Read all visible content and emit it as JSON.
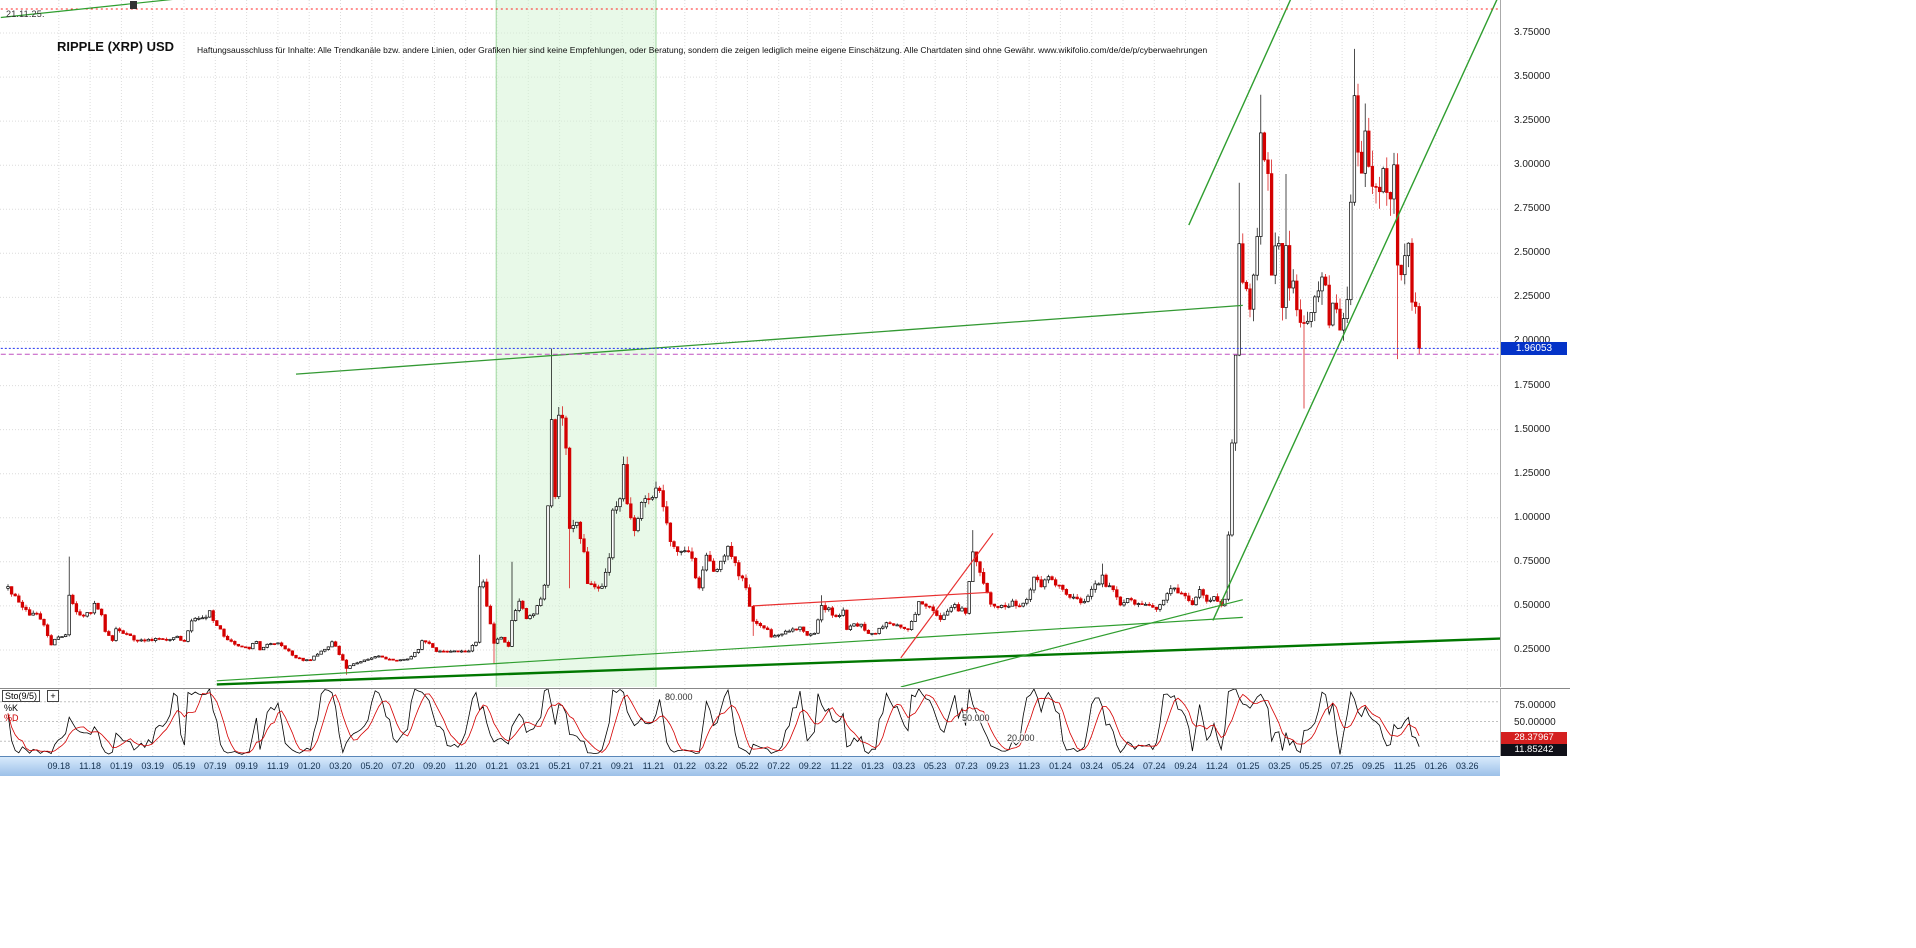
{
  "header": {
    "date_label": "21.11.25.",
    "title": "RIPPLE (XRP) USD",
    "disclaimer": "Haftungsausschluss für Inhalte: Alle Trendkanäle bzw. andere Linien, oder Grafiken hier sind keine Empfehlungen, oder Beratung, sondern die zeigen lediglich meine eigene Einschätzung. Alle Chartdaten sind ohne Gewähr.  www.wikifolio.com/de/de/p/cyberwaehrungen"
  },
  "price_axis": {
    "ticks": [
      "3.75000",
      "3.50000",
      "3.25000",
      "3.00000",
      "2.75000",
      "2.50000",
      "2.25000",
      "2.00000",
      "1.75000",
      "1.50000",
      "1.25000",
      "1.00000",
      "0.75000",
      "0.50000",
      "0.25000"
    ],
    "current_price_label": "1.96053",
    "current_price_color": "#0433c8"
  },
  "indicator": {
    "name": "Sto(9/5)",
    "add_button": "+",
    "k_label": "%K",
    "d_label": "%D",
    "levels": [
      "80.000",
      "50.000",
      "20.000"
    ],
    "axis_ticks": [
      "75.00000",
      "50.00000",
      "25.00000"
    ],
    "d_value": "28.37967",
    "k_value": "11.85242",
    "d_color": "#d42020",
    "k_color": "#101018"
  },
  "chart_data": {
    "type": "candlestick",
    "symbol": "RIPPLE (XRP) USD",
    "period": "weekly",
    "last_price": 1.96053,
    "ylim": [
      0,
      3.95
    ],
    "y_ticks": [
      3.75,
      3.5,
      3.25,
      3.0,
      2.75,
      2.5,
      2.25,
      2.0,
      1.75,
      1.5,
      1.25,
      1.0,
      0.75,
      0.5,
      0.25
    ],
    "x_labels": [
      "09.18",
      "11.18",
      "01.19",
      "03.19",
      "05.19",
      "07.19",
      "09.19",
      "11.19",
      "01.20",
      "03.20",
      "05.20",
      "07.20",
      "09.20",
      "11.20",
      "01.21",
      "03.21",
      "05.21",
      "07.21",
      "09.21",
      "11.21",
      "01.22",
      "03.22",
      "05.22",
      "07.22",
      "09.22",
      "11.22",
      "01.23",
      "03.23",
      "05.23",
      "07.23",
      "09.23",
      "11.23",
      "01.24",
      "03.24",
      "05.24",
      "07.24",
      "09.24",
      "11.24",
      "01.25",
      "03.25",
      "05.25",
      "07.25",
      "09.25",
      "11.25",
      "01.26",
      "03.26"
    ],
    "weekly_close_anchors": [
      [
        -15,
        0.6
      ],
      [
        -13,
        0.55
      ],
      [
        -11,
        0.48
      ],
      [
        -9,
        0.46
      ],
      [
        -7,
        0.45
      ],
      [
        -5,
        0.4
      ],
      [
        -3,
        0.28
      ],
      [
        -1,
        0.325
      ],
      [
        0,
        0.33
      ],
      [
        1,
        0.335
      ],
      [
        2,
        0.55
      ],
      [
        3,
        0.52
      ],
      [
        4,
        0.46
      ],
      [
        6,
        0.45
      ],
      [
        8,
        0.455
      ],
      [
        9,
        0.51
      ],
      [
        11,
        0.44
      ],
      [
        12,
        0.36
      ],
      [
        14,
        0.3
      ],
      [
        15,
        0.38
      ],
      [
        16,
        0.36
      ],
      [
        17,
        0.35
      ],
      [
        20,
        0.31
      ],
      [
        23,
        0.3
      ],
      [
        26,
        0.31
      ],
      [
        29,
        0.31
      ],
      [
        32,
        0.32
      ],
      [
        34,
        0.3
      ],
      [
        36,
        0.42
      ],
      [
        38,
        0.42
      ],
      [
        41,
        0.46
      ],
      [
        42,
        0.42
      ],
      [
        44,
        0.36
      ],
      [
        46,
        0.31
      ],
      [
        49,
        0.27
      ],
      [
        52,
        0.26
      ],
      [
        54,
        0.3
      ],
      [
        55,
        0.25
      ],
      [
        58,
        0.29
      ],
      [
        61,
        0.28
      ],
      [
        64,
        0.22
      ],
      [
        67,
        0.19
      ],
      [
        69,
        0.19
      ],
      [
        71,
        0.23
      ],
      [
        74,
        0.27
      ],
      [
        75,
        0.3
      ],
      [
        77,
        0.23
      ],
      [
        79,
        0.145
      ],
      [
        81,
        0.17
      ],
      [
        84,
        0.19
      ],
      [
        87,
        0.215
      ],
      [
        90,
        0.2
      ],
      [
        93,
        0.19
      ],
      [
        96,
        0.2
      ],
      [
        99,
        0.25
      ],
      [
        100,
        0.3
      ],
      [
        102,
        0.29
      ],
      [
        104,
        0.24
      ],
      [
        107,
        0.24
      ],
      [
        110,
        0.24
      ],
      [
        113,
        0.25
      ],
      [
        115,
        0.29
      ],
      [
        116,
        0.6
      ],
      [
        117,
        0.62
      ],
      [
        118,
        0.51
      ],
      [
        120,
        0.29
      ],
      [
        122,
        0.33
      ],
      [
        124,
        0.27
      ],
      [
        125,
        0.42
      ],
      [
        127,
        0.52
      ],
      [
        129,
        0.43
      ],
      [
        131,
        0.45
      ],
      [
        133,
        0.54
      ],
      [
        134,
        0.62
      ],
      [
        135,
        1.05
      ],
      [
        136,
        1.6
      ],
      [
        137,
        1.1
      ],
      [
        138,
        1.58
      ],
      [
        139,
        1.55
      ],
      [
        140,
        1.4
      ],
      [
        141,
        0.93
      ],
      [
        142,
        0.95
      ],
      [
        143,
        0.95
      ],
      [
        145,
        0.8
      ],
      [
        146,
        0.63
      ],
      [
        148,
        0.62
      ],
      [
        150,
        0.6
      ],
      [
        152,
        0.78
      ],
      [
        153,
        1.05
      ],
      [
        155,
        1.1
      ],
      [
        156,
        1.28
      ],
      [
        157,
        1.07
      ],
      [
        159,
        0.93
      ],
      [
        161,
        1.1
      ],
      [
        163,
        1.1
      ],
      [
        165,
        1.18
      ],
      [
        166,
        1.15
      ],
      [
        168,
        0.95
      ],
      [
        170,
        0.82
      ],
      [
        173,
        0.83
      ],
      [
        175,
        0.75
      ],
      [
        177,
        0.6
      ],
      [
        179,
        0.78
      ],
      [
        181,
        0.69
      ],
      [
        183,
        0.76
      ],
      [
        185,
        0.84
      ],
      [
        187,
        0.73
      ],
      [
        190,
        0.6
      ],
      [
        192,
        0.42
      ],
      [
        194,
        0.39
      ],
      [
        196,
        0.37
      ],
      [
        197,
        0.32
      ],
      [
        199,
        0.33
      ],
      [
        202,
        0.36
      ],
      [
        205,
        0.375
      ],
      [
        207,
        0.33
      ],
      [
        209,
        0.35
      ],
      [
        211,
        0.49
      ],
      [
        213,
        0.48
      ],
      [
        215,
        0.44
      ],
      [
        217,
        0.47
      ],
      [
        218,
        0.37
      ],
      [
        220,
        0.4
      ],
      [
        222,
        0.39
      ],
      [
        224,
        0.35
      ],
      [
        226,
        0.34
      ],
      [
        228,
        0.39
      ],
      [
        230,
        0.4
      ],
      [
        232,
        0.39
      ],
      [
        234,
        0.365
      ],
      [
        235,
        0.37
      ],
      [
        237,
        0.45
      ],
      [
        238,
        0.53
      ],
      [
        240,
        0.51
      ],
      [
        242,
        0.47
      ],
      [
        244,
        0.43
      ],
      [
        246,
        0.46
      ],
      [
        248,
        0.52
      ],
      [
        249,
        0.48
      ],
      [
        251,
        0.47
      ],
      [
        253,
        0.79
      ],
      [
        254,
        0.74
      ],
      [
        256,
        0.63
      ],
      [
        258,
        0.51
      ],
      [
        260,
        0.5
      ],
      [
        262,
        0.5
      ],
      [
        264,
        0.52
      ],
      [
        266,
        0.49
      ],
      [
        268,
        0.55
      ],
      [
        270,
        0.66
      ],
      [
        272,
        0.615
      ],
      [
        274,
        0.66
      ],
      [
        276,
        0.62
      ],
      [
        279,
        0.57
      ],
      [
        281,
        0.55
      ],
      [
        283,
        0.52
      ],
      [
        285,
        0.555
      ],
      [
        287,
        0.62
      ],
      [
        288,
        0.63
      ],
      [
        289,
        0.66
      ],
      [
        290,
        0.62
      ],
      [
        292,
        0.6
      ],
      [
        294,
        0.5
      ],
      [
        296,
        0.53
      ],
      [
        298,
        0.515
      ],
      [
        300,
        0.52
      ],
      [
        302,
        0.49
      ],
      [
        304,
        0.475
      ],
      [
        307,
        0.58
      ],
      [
        308,
        0.6
      ],
      [
        310,
        0.58
      ],
      [
        312,
        0.56
      ],
      [
        314,
        0.52
      ],
      [
        316,
        0.585
      ],
      [
        318,
        0.53
      ],
      [
        320,
        0.545
      ],
      [
        322,
        0.51
      ],
      [
        323,
        0.55
      ],
      [
        324,
        0.9
      ],
      [
        325,
        1.45
      ],
      [
        326,
        1.95
      ],
      [
        327,
        2.5
      ],
      [
        328,
        2.4
      ],
      [
        329,
        2.25
      ],
      [
        330,
        2.15
      ],
      [
        331,
        2.4
      ],
      [
        332,
        2.55
      ],
      [
        333,
        3.1
      ],
      [
        334,
        3.1
      ],
      [
        335,
        2.9
      ],
      [
        336,
        2.4
      ],
      [
        337,
        2.55
      ],
      [
        338,
        2.55
      ],
      [
        339,
        2.15
      ],
      [
        340,
        2.5
      ],
      [
        341,
        2.35
      ],
      [
        342,
        2.4
      ],
      [
        343,
        2.15
      ],
      [
        344,
        2.1
      ],
      [
        345,
        2.05
      ],
      [
        346,
        2.08
      ],
      [
        347,
        2.2
      ],
      [
        348,
        2.2
      ],
      [
        349,
        2.35
      ],
      [
        350,
        2.4
      ],
      [
        351,
        2.3
      ],
      [
        352,
        2.15
      ],
      [
        353,
        2.2
      ],
      [
        354,
        2.15
      ],
      [
        355,
        2.05
      ],
      [
        356,
        2.1
      ],
      [
        357,
        2.25
      ],
      [
        358,
        2.75
      ],
      [
        359,
        3.45
      ],
      [
        360,
        3.15
      ],
      [
        361,
        2.95
      ],
      [
        362,
        3.25
      ],
      [
        363,
        3.05
      ],
      [
        364,
        2.9
      ],
      [
        365,
        2.8
      ],
      [
        366,
        2.85
      ],
      [
        367,
        3.05
      ],
      [
        368,
        2.9
      ],
      [
        369,
        2.75
      ],
      [
        370,
        2.95
      ],
      [
        371,
        2.45
      ],
      [
        372,
        2.35
      ],
      [
        373,
        2.55
      ],
      [
        374,
        2.5
      ],
      [
        375,
        2.25
      ],
      [
        376,
        2.15
      ],
      [
        377,
        1.96053
      ]
    ],
    "spike_highs": [
      [
        2,
        0.78
      ],
      [
        116,
        0.79
      ],
      [
        125,
        0.75
      ],
      [
        136,
        1.96
      ],
      [
        211,
        0.56
      ],
      [
        253,
        0.93
      ],
      [
        289,
        0.74
      ],
      [
        327,
        2.9
      ],
      [
        333,
        3.4
      ],
      [
        340,
        2.95
      ],
      [
        359,
        3.66
      ],
      [
        362,
        3.35
      ]
    ],
    "spike_lows": [
      [
        79,
        0.11
      ],
      [
        120,
        0.17
      ],
      [
        141,
        0.6
      ],
      [
        192,
        0.33
      ],
      [
        345,
        1.62
      ],
      [
        371,
        1.9
      ]
    ],
    "highlight_band": {
      "from_w": 120.6,
      "to_w": 165,
      "color": "#d2f3d2",
      "from_label": "12.20",
      "to_label": "11.21"
    },
    "overlays": [
      {
        "name": "trendline-2021-resistance",
        "color": "#339933",
        "width": 1.3,
        "dash": null,
        "points": [
          [
            65,
            1.815
          ],
          [
            328,
            2.205
          ]
        ]
      },
      {
        "name": "long-term-support",
        "color": "#007700",
        "width": 2.4,
        "dash": null,
        "points": [
          [
            43,
            0.055
          ],
          [
            400,
            0.315
          ]
        ]
      },
      {
        "name": "secondary-support",
        "color": "#2f9e2f",
        "width": 1.2,
        "dash": null,
        "points": [
          [
            43,
            0.075
          ],
          [
            328,
            0.435
          ]
        ]
      },
      {
        "name": "mid-term-support",
        "color": "#2f9e2f",
        "width": 1.2,
        "dash": null,
        "points": [
          [
            233,
            0.04
          ],
          [
            328,
            0.535
          ]
        ]
      },
      {
        "name": "steep-channel-lower",
        "color": "#2f9e2f",
        "width": 1.4,
        "dash": null,
        "points": [
          [
            319.7,
            0.418
          ],
          [
            398.6,
            3.94
          ]
        ]
      },
      {
        "name": "steep-channel-upper",
        "color": "#2f9e2f",
        "width": 1.4,
        "dash": null,
        "points": [
          [
            313,
            2.66
          ],
          [
            341.5,
            3.95
          ]
        ]
      },
      {
        "name": "red-resistance",
        "color": "#e83030",
        "width": 1.2,
        "dash": null,
        "points": [
          [
            192,
            0.5
          ],
          [
            258.3,
            0.578
          ]
        ]
      },
      {
        "name": "red-rising-wedge",
        "color": "#e83030",
        "width": 1.2,
        "dash": null,
        "points": [
          [
            233,
            0.205
          ],
          [
            258.6,
            0.912
          ]
        ]
      },
      {
        "name": "ath-level-dotted",
        "color": "#ff2020",
        "width": 1,
        "dash": "2,3",
        "points": [
          [
            -17,
            3.886
          ],
          [
            399,
            3.886
          ]
        ]
      },
      {
        "name": "top-left-trendline",
        "color": "#2f9e2f",
        "width": 1.2,
        "dash": null,
        "points": [
          [
            -17,
            3.838
          ],
          [
            36,
            3.952
          ]
        ]
      },
      {
        "name": "current-price-line",
        "color": "#2233ee",
        "width": 1,
        "dash": "2,2",
        "points": [
          [
            -17,
            1.96053
          ],
          [
            399,
            1.96053
          ]
        ]
      },
      {
        "name": "magenta-level-line",
        "color": "#c050c0",
        "width": 1,
        "dash": "5,3",
        "points": [
          [
            -17,
            1.928
          ],
          [
            399,
            1.928
          ]
        ]
      }
    ],
    "indicator": {
      "type": "stochastic",
      "label": "Sto(9/5)",
      "k_period": 9,
      "d_period": 5,
      "levels": [
        80,
        50,
        20
      ],
      "last_k": 11.85242,
      "last_d": 28.37967
    }
  }
}
